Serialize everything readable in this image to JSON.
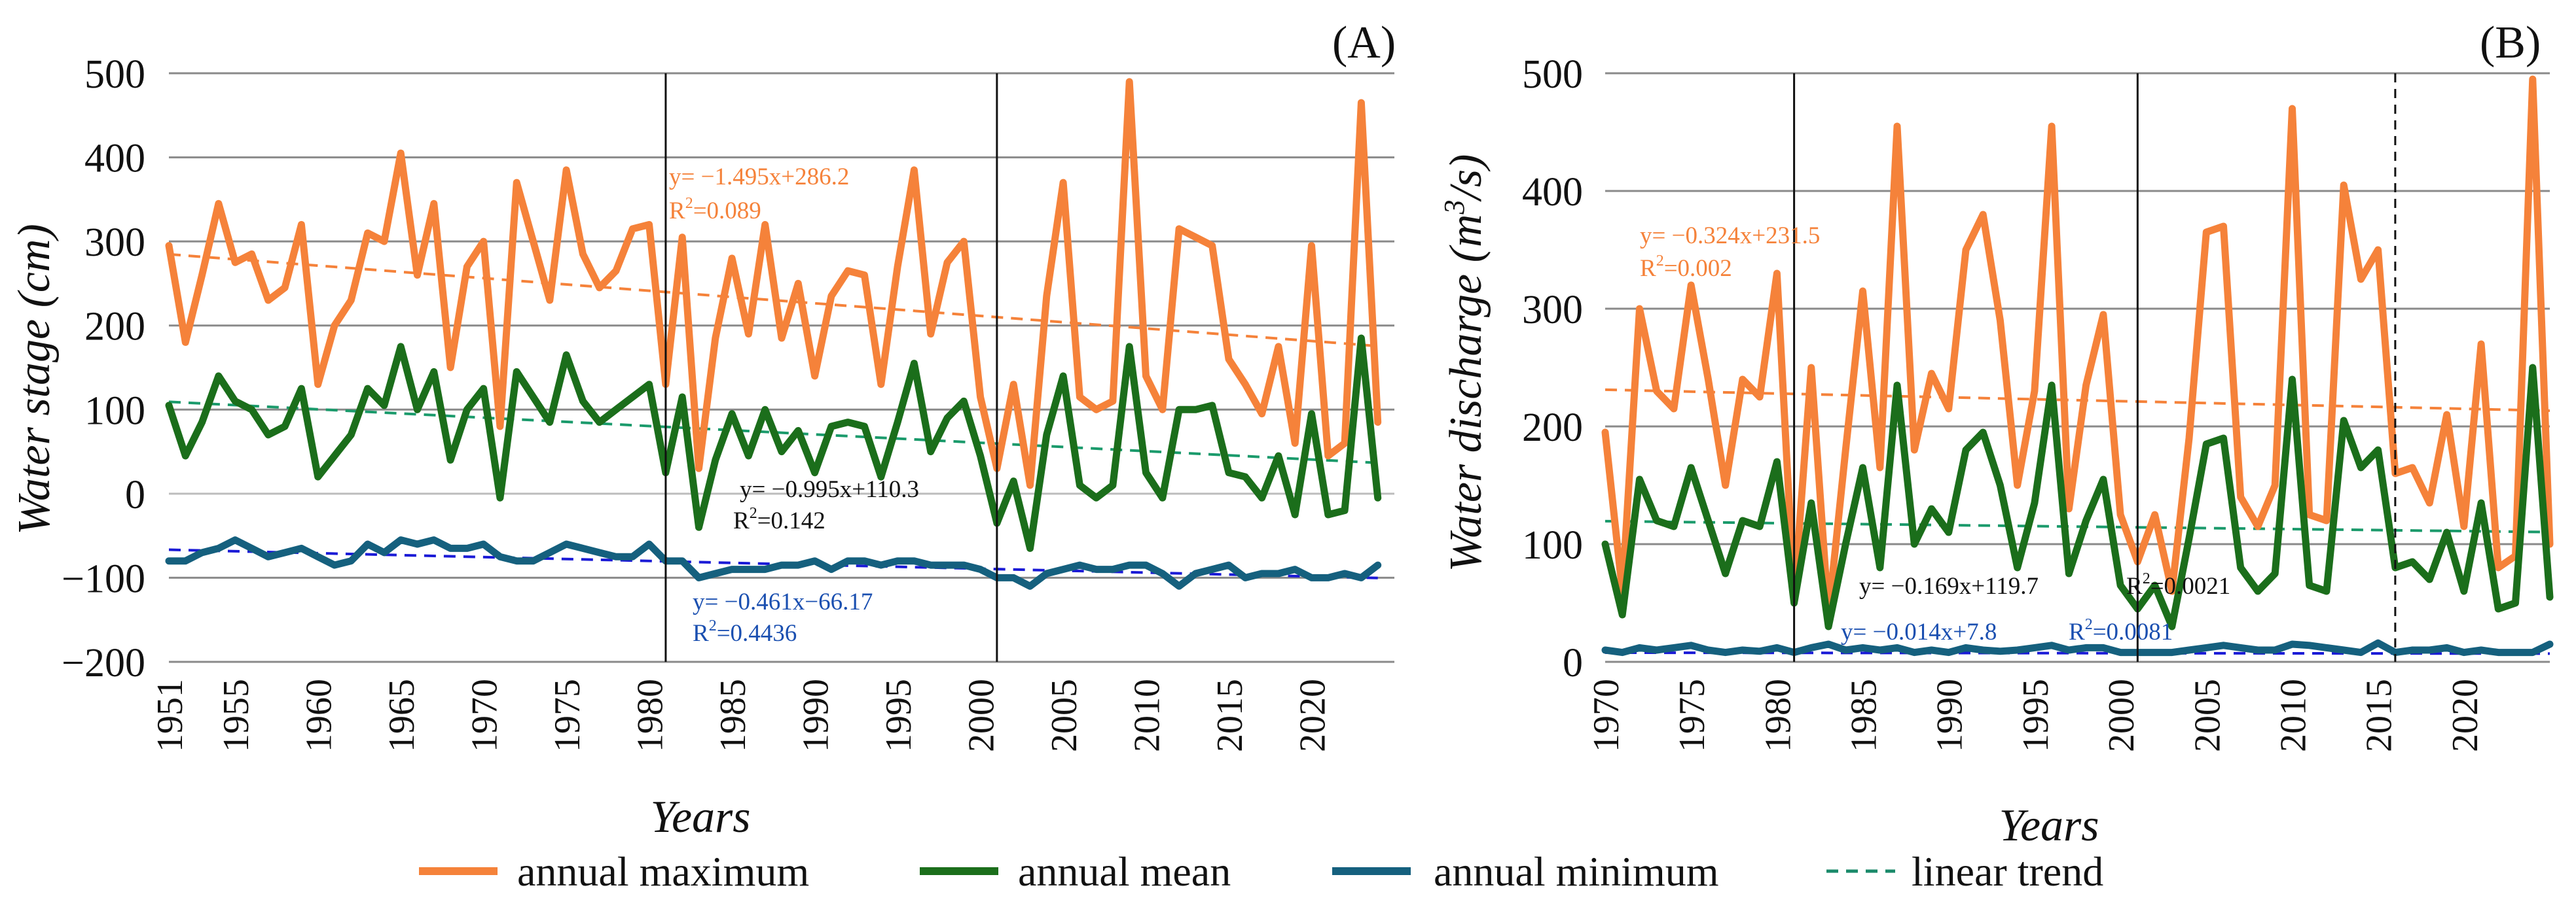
{
  "chart_data": [
    {
      "panel_label": "(A)",
      "type": "line",
      "ylabel": "Water stage (cm)",
      "xlabel": "Years",
      "ylim": [
        -200,
        500
      ],
      "yticks": [
        -200,
        -100,
        0,
        100,
        200,
        300,
        400,
        500
      ],
      "ytick_labels": [
        "−200",
        "−100",
        "0",
        "100",
        "200",
        "300",
        "400",
        "500"
      ],
      "xlim": [
        1951,
        2025
      ],
      "xtick_labels": [
        "1951",
        "1955",
        "1960",
        "1965",
        "1970",
        "1975",
        "1980",
        "1985",
        "1990",
        "1995",
        "2000",
        "2005",
        "2010",
        "2015",
        "2020"
      ],
      "breakpoints": [
        1981,
        2001
      ],
      "series": [
        {
          "name": "annual maximum",
          "color": "#f5823a",
          "start_year": 1951,
          "values": [
            295,
            180,
            260,
            345,
            275,
            285,
            230,
            245,
            320,
            130,
            200,
            230,
            310,
            300,
            405,
            260,
            345,
            150,
            270,
            300,
            80,
            370,
            300,
            230,
            385,
            285,
            245,
            265,
            315,
            320,
            130,
            305,
            30,
            185,
            280,
            190,
            320,
            185,
            250,
            140,
            235,
            265,
            260,
            130,
            270,
            385,
            190,
            275,
            300,
            115,
            30,
            130,
            10,
            235,
            370,
            115,
            100,
            110,
            490,
            140,
            100,
            315,
            305,
            295,
            160,
            130,
            95,
            175,
            60,
            295,
            45,
            60,
            465,
            85
          ]
        },
        {
          "name": "annual mean",
          "color": "#1b6e1b",
          "start_year": 1951,
          "values": [
            105,
            45,
            85,
            140,
            110,
            100,
            70,
            80,
            125,
            20,
            45,
            70,
            125,
            105,
            175,
            100,
            145,
            40,
            100,
            125,
            -5,
            145,
            115,
            85,
            165,
            110,
            85,
            100,
            115,
            130,
            25,
            115,
            -40,
            40,
            95,
            45,
            100,
            50,
            75,
            25,
            80,
            85,
            80,
            20,
            85,
            155,
            50,
            90,
            110,
            45,
            -35,
            15,
            -65,
            70,
            140,
            10,
            -5,
            10,
            175,
            25,
            -5,
            100,
            100,
            105,
            25,
            20,
            -5,
            45,
            -25,
            95,
            -25,
            -20,
            185,
            -5
          ]
        },
        {
          "name": "annual minimum",
          "color": "#15607e",
          "start_year": 1951,
          "values": [
            -80,
            -80,
            -70,
            -65,
            -55,
            -65,
            -75,
            -70,
            -65,
            -75,
            -85,
            -80,
            -60,
            -70,
            -55,
            -60,
            -55,
            -65,
            -65,
            -60,
            -75,
            -80,
            -80,
            -70,
            -60,
            -65,
            -70,
            -75,
            -75,
            -60,
            -80,
            -80,
            -100,
            -95,
            -90,
            -90,
            -90,
            -85,
            -85,
            -80,
            -90,
            -80,
            -80,
            -85,
            -80,
            -80,
            -85,
            -85,
            -85,
            -90,
            -100,
            -100,
            -110,
            -95,
            -90,
            -85,
            -90,
            -90,
            -85,
            -85,
            -95,
            -110,
            -95,
            -90,
            -85,
            -100,
            -95,
            -95,
            -90,
            -100,
            -100,
            -95,
            -100,
            -85
          ]
        }
      ],
      "trends": [
        {
          "slope": -1.495,
          "intercept": 286.2,
          "color": "#f5823a",
          "equation": "y= −1.495x+286.2",
          "r2_label": "R",
          "r2_exp": "2",
          "r2_value": "=0.089"
        },
        {
          "slope": -0.995,
          "intercept": 110.3,
          "color": "#1a9a6b",
          "equation": "y= −0.995x+110.3",
          "r2_label": "R",
          "r2_exp": "2",
          "r2_value": "=0.142"
        },
        {
          "slope": -0.461,
          "intercept": -66.17,
          "color": "#1a1ad6",
          "equation": "y= −0.461x−66.17",
          "r2_label": "R",
          "r2_exp": "2",
          "r2_value": "=0.4436"
        }
      ]
    },
    {
      "panel_label": "(B)",
      "type": "line",
      "ylabel": "Water discharge (m",
      "ylabel_sup": "3",
      "ylabel_end": "/s)",
      "xlabel": "Years",
      "ylim": [
        0,
        500
      ],
      "yticks": [
        0,
        100,
        200,
        300,
        400,
        500
      ],
      "ytick_labels": [
        "0",
        "100",
        "200",
        "300",
        "400",
        "500"
      ],
      "xlim": [
        1970,
        2025
      ],
      "xtick_labels": [
        "1970",
        "1975",
        "1980",
        "1985",
        "1990",
        "1995",
        "2000",
        "2005",
        "2010",
        "2015",
        "2020"
      ],
      "breakpoints": [
        1981,
        2001
      ],
      "dashed_breakpoint": 2016,
      "series": [
        {
          "name": "annual maximum",
          "color": "#f5823a",
          "start_year": 1970,
          "values": [
            195,
            60,
            300,
            230,
            215,
            320,
            240,
            150,
            240,
            225,
            330,
            55,
            250,
            40,
            180,
            315,
            165,
            455,
            180,
            245,
            215,
            350,
            380,
            290,
            150,
            230,
            455,
            130,
            235,
            295,
            125,
            85,
            125,
            60,
            190,
            365,
            370,
            140,
            115,
            150,
            470,
            125,
            120,
            405,
            325,
            350,
            160,
            165,
            135,
            210,
            115,
            270,
            80,
            90,
            495,
            100
          ]
        },
        {
          "name": "annual mean",
          "color": "#1b6e1b",
          "start_year": 1970,
          "values": [
            100,
            40,
            155,
            120,
            115,
            165,
            120,
            75,
            120,
            115,
            170,
            50,
            135,
            30,
            100,
            165,
            80,
            235,
            100,
            130,
            110,
            180,
            195,
            150,
            80,
            135,
            235,
            75,
            120,
            155,
            65,
            45,
            65,
            30,
            105,
            185,
            190,
            80,
            60,
            75,
            240,
            65,
            60,
            205,
            165,
            180,
            80,
            85,
            70,
            110,
            60,
            135,
            45,
            50,
            250,
            55
          ]
        },
        {
          "name": "annual minimum",
          "color": "#15607e",
          "start_year": 1970,
          "values": [
            10,
            8,
            12,
            10,
            12,
            14,
            10,
            8,
            10,
            9,
            12,
            8,
            12,
            15,
            10,
            12,
            10,
            12,
            8,
            10,
            8,
            12,
            10,
            9,
            10,
            12,
            14,
            10,
            12,
            12,
            8,
            8,
            8,
            8,
            10,
            12,
            14,
            12,
            10,
            10,
            15,
            14,
            12,
            10,
            8,
            16,
            8,
            10,
            10,
            12,
            8,
            10,
            8,
            8,
            8,
            15
          ]
        }
      ],
      "trends": [
        {
          "slope": -0.324,
          "intercept": 231.5,
          "color": "#f5823a",
          "equation": "y= −0.324x+231.5",
          "r2_label": "R",
          "r2_exp": "2",
          "r2_value": "=0.002"
        },
        {
          "slope": -0.169,
          "intercept": 119.7,
          "color": "#1a9a6b",
          "equation": "y= −0.169x+119.7",
          "r2_label": "R",
          "r2_exp": "2",
          "r2_value": "=0.0021"
        },
        {
          "slope": -0.014,
          "intercept": 7.8,
          "color": "#1a1ad6",
          "equation": "y= −0.014x+7.8",
          "r2_label": "R",
          "r2_exp": "2",
          "r2_value": "=0.0081"
        }
      ]
    }
  ],
  "legend": {
    "placement": "bottom-center",
    "items": [
      {
        "label": "annual maximum",
        "color": "#f5823a",
        "style": "solid"
      },
      {
        "label": "annual mean",
        "color": "#1b6e1b",
        "style": "solid"
      },
      {
        "label": "annual minimum",
        "color": "#15607e",
        "style": "solid"
      },
      {
        "label": "linear trend",
        "color": "#1a8a6a",
        "style": "dashed"
      }
    ]
  }
}
